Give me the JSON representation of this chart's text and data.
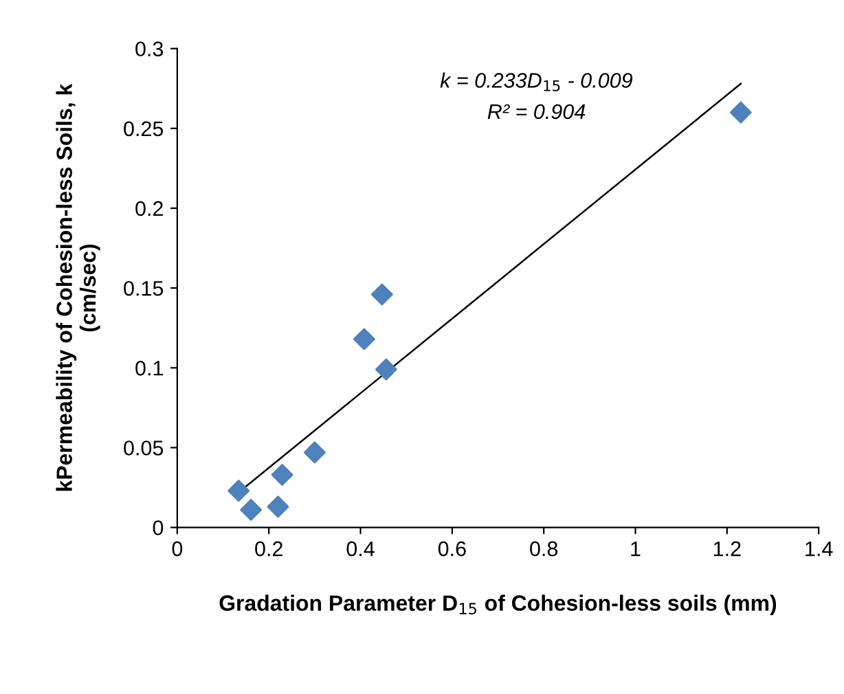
{
  "chart_data": {
    "type": "scatter",
    "xlabel": "Gradation Parameter D$_{15}$ of Cohesion-less soils (mm)",
    "ylabel": "kPermeability of Cohesion-less Soils, k\n(cm/sec)",
    "xlim": [
      0,
      1.4
    ],
    "xticks": [
      0,
      0.2,
      0.4,
      0.6,
      0.8,
      1,
      1.2,
      1.4
    ],
    "ylim": [
      0,
      0.3
    ],
    "yticks": [
      0,
      0.05,
      0.1,
      0.15,
      0.2,
      0.25,
      0.3
    ],
    "grid": false,
    "legend": false,
    "marker": "diamond",
    "annotations": [
      "k = 0.233D$_{15}$ - 0.009",
      "R² = 0.904"
    ],
    "series": [
      {
        "color": "#4f81bd",
        "x": [
          0.134,
          0.161,
          0.22,
          0.229,
          0.3,
          0.408,
          0.447,
          0.456,
          1.23
        ],
        "values": [
          0.023,
          0.011,
          0.013,
          0.033,
          0.047,
          0.118,
          0.146,
          0.099,
          0.26
        ]
      },
      {
        "type": "line",
        "color": "#000000",
        "marker": "none",
        "line_style": "solid",
        "x": [
          0.13,
          1.23
        ],
        "values": [
          0.021,
          0.278
        ]
      }
    ]
  }
}
